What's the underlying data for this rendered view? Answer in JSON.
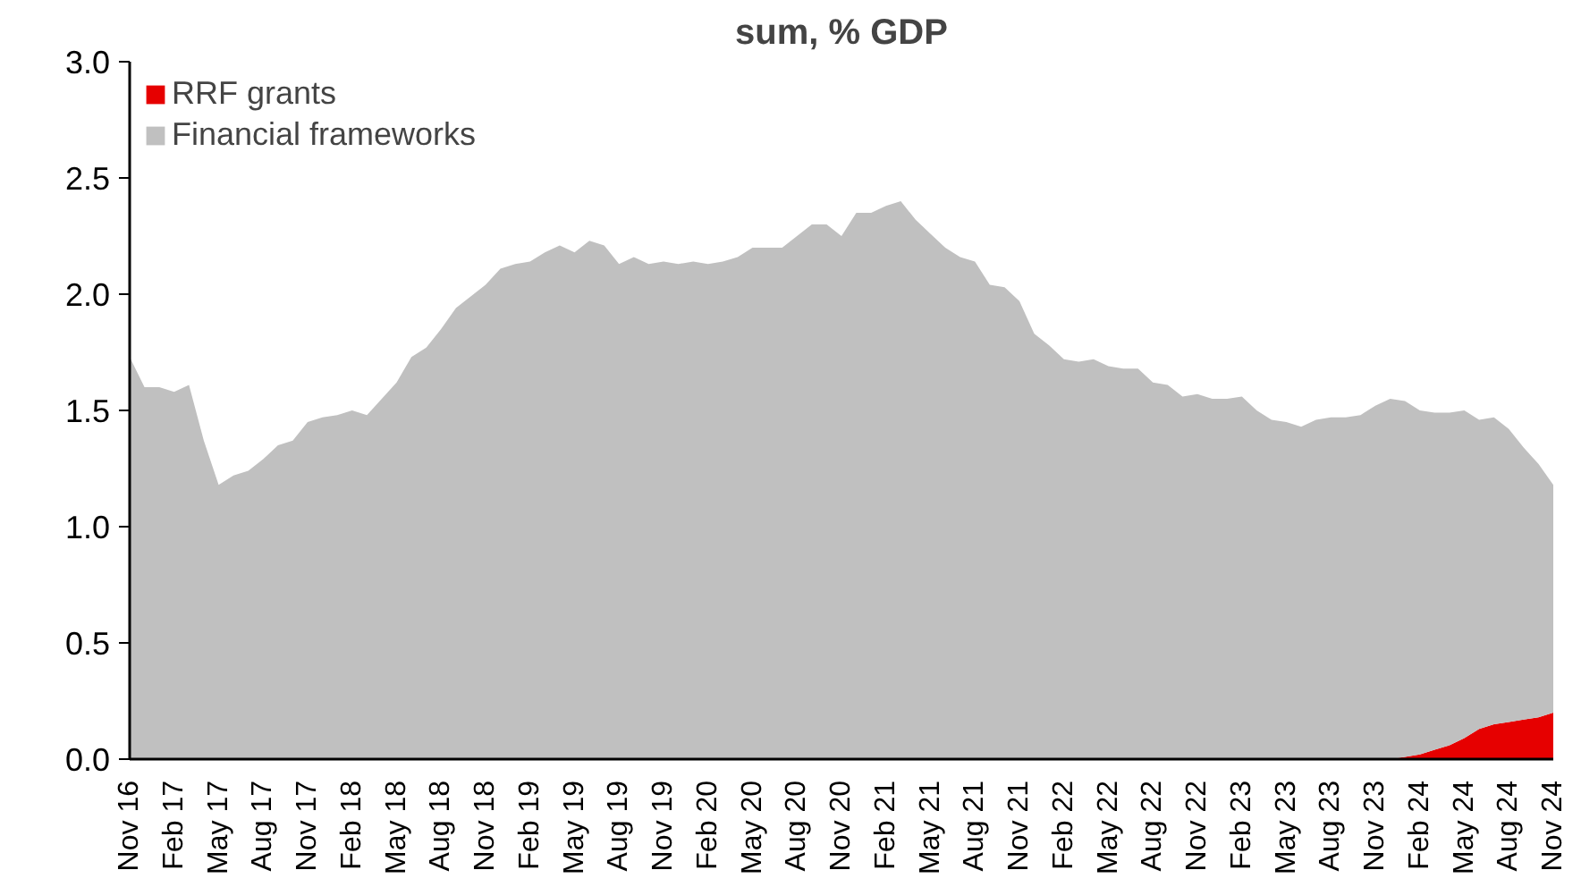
{
  "chart_data": {
    "type": "area",
    "title": "sum, % GDP",
    "stacked": true,
    "legend": "top left",
    "x": [
      "2016-11",
      "2016-12",
      "2017-01",
      "2017-02",
      "2017-03",
      "2017-04",
      "2017-05",
      "2017-06",
      "2017-07",
      "2017-08",
      "2017-09",
      "2017-10",
      "2017-11",
      "2017-12",
      "2018-01",
      "2018-02",
      "2018-03",
      "2018-04",
      "2018-05",
      "2018-06",
      "2018-07",
      "2018-08",
      "2018-09",
      "2018-10",
      "2018-11",
      "2018-12",
      "2019-01",
      "2019-02",
      "2019-03",
      "2019-04",
      "2019-05",
      "2019-06",
      "2019-07",
      "2019-08",
      "2019-09",
      "2019-10",
      "2019-11",
      "2019-12",
      "2020-01",
      "2020-02",
      "2020-03",
      "2020-04",
      "2020-05",
      "2020-06",
      "2020-07",
      "2020-08",
      "2020-09",
      "2020-10",
      "2020-11",
      "2020-12",
      "2021-01",
      "2021-02",
      "2021-03",
      "2021-04",
      "2021-05",
      "2021-06",
      "2021-07",
      "2021-08",
      "2021-09",
      "2021-10",
      "2021-11",
      "2021-12",
      "2022-01",
      "2022-02",
      "2022-03",
      "2022-04",
      "2022-05",
      "2022-06",
      "2022-07",
      "2022-08",
      "2022-09",
      "2022-10",
      "2022-11",
      "2022-12",
      "2023-01",
      "2023-02",
      "2023-03",
      "2023-04",
      "2023-05",
      "2023-06",
      "2023-07",
      "2023-08",
      "2023-09",
      "2023-10",
      "2023-11",
      "2023-12",
      "2024-01",
      "2024-02",
      "2024-03",
      "2024-04",
      "2024-05",
      "2024-06",
      "2024-07",
      "2024-08",
      "2024-09",
      "2024-10",
      "2024-11"
    ],
    "series": [
      {
        "name": "RRF grants",
        "color": "#e60000",
        "values": [
          null,
          null,
          null,
          null,
          null,
          null,
          null,
          null,
          null,
          null,
          null,
          null,
          null,
          null,
          null,
          null,
          null,
          null,
          null,
          null,
          null,
          null,
          null,
          null,
          null,
          null,
          null,
          null,
          null,
          null,
          null,
          null,
          null,
          null,
          null,
          null,
          null,
          null,
          null,
          null,
          null,
          null,
          null,
          null,
          null,
          null,
          null,
          null,
          null,
          null,
          null,
          null,
          null,
          null,
          null,
          null,
          null,
          null,
          null,
          null,
          null,
          null,
          null,
          null,
          null,
          null,
          null,
          null,
          null,
          null,
          null,
          null,
          null,
          null,
          null,
          null,
          null,
          null,
          null,
          null,
          null,
          null,
          null,
          null,
          null,
          0,
          0.01,
          0.02,
          0.04,
          0.06,
          0.09,
          0.13,
          0.15,
          0.16,
          0.17,
          0.18,
          0.2
        ]
      },
      {
        "name": "Financial frameworks",
        "color": "#c0c0c0",
        "values": [
          1.73,
          1.6,
          1.6,
          1.58,
          1.61,
          1.37,
          1.18,
          1.22,
          1.24,
          1.29,
          1.35,
          1.37,
          1.45,
          1.47,
          1.48,
          1.5,
          1.48,
          1.55,
          1.62,
          1.73,
          1.77,
          1.85,
          1.94,
          1.99,
          2.04,
          2.11,
          2.13,
          2.14,
          2.18,
          2.21,
          2.18,
          2.23,
          2.21,
          2.13,
          2.16,
          2.13,
          2.14,
          2.13,
          2.14,
          2.13,
          2.14,
          2.16,
          2.2,
          2.2,
          2.2,
          2.25,
          2.3,
          2.3,
          2.25,
          2.35,
          2.35,
          2.38,
          2.4,
          2.32,
          2.26,
          2.2,
          2.16,
          2.14,
          2.04,
          2.03,
          1.97,
          1.83,
          1.78,
          1.72,
          1.71,
          1.72,
          1.69,
          1.68,
          1.68,
          1.62,
          1.61,
          1.56,
          1.57,
          1.55,
          1.55,
          1.56,
          1.5,
          1.46,
          1.45,
          1.43,
          1.46,
          1.47,
          1.47,
          1.48,
          1.52,
          1.55,
          1.53,
          1.48,
          1.45,
          1.43,
          1.41,
          1.33,
          1.32,
          1.26,
          1.17,
          1.09,
          0.98
        ]
      }
    ],
    "xlim": [
      "2016-11",
      "2024-11"
    ],
    "xticks": [
      {
        "value": "2016-11",
        "label": "Nov 16"
      },
      {
        "value": "2017-02",
        "label": "Feb 17"
      },
      {
        "value": "2017-05",
        "label": "May 17"
      },
      {
        "value": "2017-08",
        "label": "Aug 17"
      },
      {
        "value": "2017-11",
        "label": "Nov 17"
      },
      {
        "value": "2018-02",
        "label": "Feb 18"
      },
      {
        "value": "2018-05",
        "label": "May 18"
      },
      {
        "value": "2018-08",
        "label": "Aug 18"
      },
      {
        "value": "2018-11",
        "label": "Nov 18"
      },
      {
        "value": "2019-02",
        "label": "Feb 19"
      },
      {
        "value": "2019-05",
        "label": "May 19"
      },
      {
        "value": "2019-08",
        "label": "Aug 19"
      },
      {
        "value": "2019-11",
        "label": "Nov 19"
      },
      {
        "value": "2020-02",
        "label": "Feb 20"
      },
      {
        "value": "2020-05",
        "label": "May 20"
      },
      {
        "value": "2020-08",
        "label": "Aug 20"
      },
      {
        "value": "2020-11",
        "label": "Nov 20"
      },
      {
        "value": "2021-02",
        "label": "Feb 21"
      },
      {
        "value": "2021-05",
        "label": "May 21"
      },
      {
        "value": "2021-08",
        "label": "Aug 21"
      },
      {
        "value": "2021-11",
        "label": "Nov 21"
      },
      {
        "value": "2022-02",
        "label": "Feb 22"
      },
      {
        "value": "2022-05",
        "label": "May 22"
      },
      {
        "value": "2022-08",
        "label": "Aug 22"
      },
      {
        "value": "2022-11",
        "label": "Nov 22"
      },
      {
        "value": "2023-02",
        "label": "Feb 23"
      },
      {
        "value": "2023-05",
        "label": "May 23"
      },
      {
        "value": "2023-08",
        "label": "Aug 23"
      },
      {
        "value": "2023-11",
        "label": "Nov 23"
      },
      {
        "value": "2024-02",
        "label": "Feb 24"
      },
      {
        "value": "2024-05",
        "label": "May 24"
      },
      {
        "value": "2024-08",
        "label": "Aug 24"
      },
      {
        "value": "2024-11",
        "label": "Nov 24"
      }
    ],
    "ylim": [
      0,
      3
    ],
    "yticks": [
      {
        "value": 0,
        "label": "0.0"
      },
      {
        "value": 0.5,
        "label": "0.5"
      },
      {
        "value": 1,
        "label": "1.0"
      },
      {
        "value": 1.5,
        "label": "1.5"
      },
      {
        "value": 2,
        "label": "2.0"
      },
      {
        "value": 2.5,
        "label": "2.5"
      },
      {
        "value": 3,
        "label": "3.0"
      }
    ]
  }
}
